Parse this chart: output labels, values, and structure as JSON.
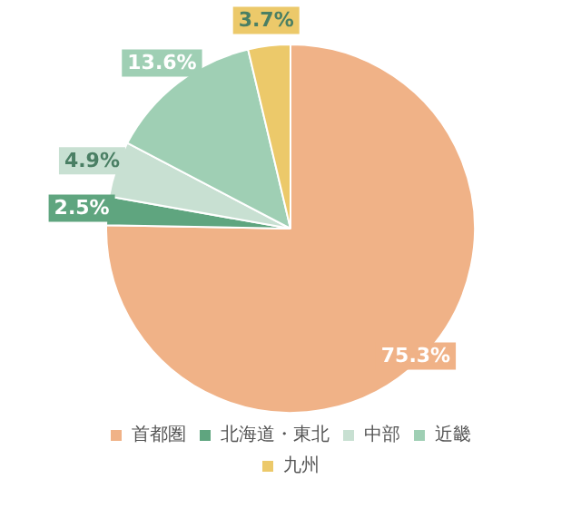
{
  "chart_data": {
    "type": "pie",
    "categories": [
      "首都圏",
      "北海道・東北",
      "中部",
      "近畿",
      "九州"
    ],
    "values": [
      75.3,
      2.5,
      4.9,
      13.6,
      3.7
    ],
    "colors": [
      "#f0b287",
      "#5fa57f",
      "#c8e0d2",
      "#9fcfb4",
      "#ecc96a"
    ],
    "value_labels": [
      "75.3%",
      "2.5%",
      "4.9%",
      "13.6%",
      "3.7%"
    ],
    "legend": "bottom"
  }
}
